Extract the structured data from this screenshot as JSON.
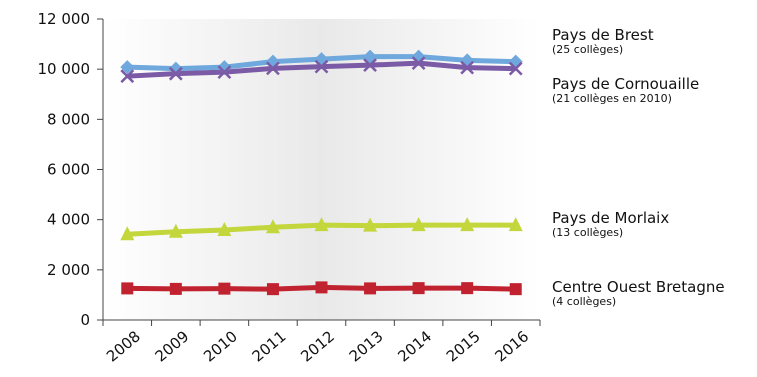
{
  "chart_data": {
    "type": "line",
    "x": [
      "2008",
      "2009",
      "2010",
      "2011",
      "2012",
      "2013",
      "2014",
      "2015",
      "2016"
    ],
    "ylim": [
      0,
      12000
    ],
    "y_ticks": [
      0,
      2000,
      4000,
      6000,
      8000,
      10000,
      12000
    ],
    "y_tick_labels": [
      "0",
      "2 000",
      "4 000",
      "6 000",
      "8 000",
      "10 000",
      "12 000"
    ],
    "grid": false,
    "legend_position": "right",
    "series": [
      {
        "name": "Pays de Brest",
        "note": "(25 collèges)",
        "color": "#6fa8dc",
        "marker": "diamond",
        "values": [
          10080,
          10020,
          10080,
          10300,
          10400,
          10500,
          10500,
          10350,
          10300
        ]
      },
      {
        "name": "Pays de Cornouaille",
        "note": "(21 collèges en 2010)",
        "color": "#7b5aa6",
        "marker": "x",
        "values": [
          9720,
          9820,
          9880,
          10030,
          10100,
          10160,
          10240,
          10060,
          10020
        ]
      },
      {
        "name": "Pays de Morlaix",
        "note": "(13 collèges)",
        "color": "#c3d63b",
        "marker": "triangle",
        "values": [
          3420,
          3520,
          3590,
          3700,
          3780,
          3760,
          3780,
          3780,
          3780
        ]
      },
      {
        "name": "Centre Ouest Bretagne",
        "note": "(4 collèges)",
        "color": "#c0222f",
        "marker": "square",
        "values": [
          1260,
          1240,
          1250,
          1230,
          1300,
          1260,
          1270,
          1270,
          1230
        ]
      }
    ]
  }
}
